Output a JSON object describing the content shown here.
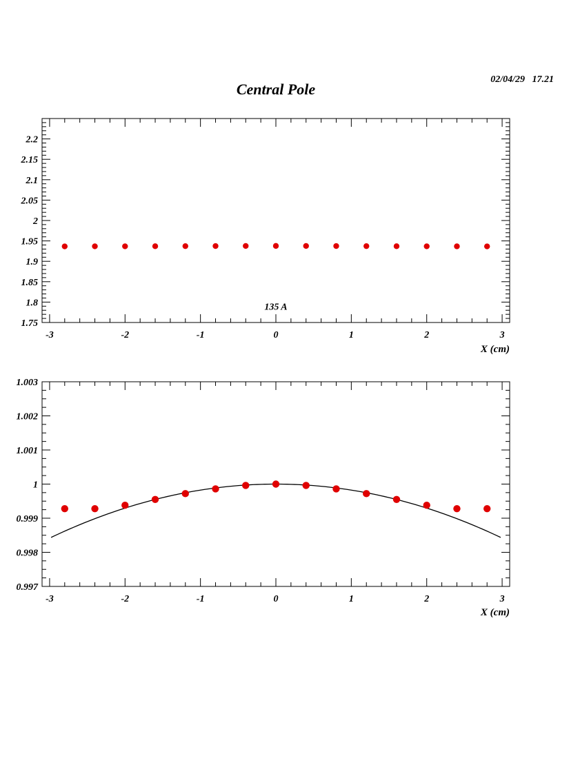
{
  "header": {
    "title": "Central Pole",
    "timestamp": "02/04/29   17.21"
  },
  "chart_data": [
    {
      "type": "scatter",
      "xlabel": "X (cm)",
      "ylabel": "",
      "xlim": [
        -3.1,
        3.1
      ],
      "ylim": [
        1.75,
        2.25
      ],
      "xticks": [
        -3,
        -2,
        -1,
        0,
        1,
        2,
        3
      ],
      "xtick_labels": [
        "-3",
        "-2",
        "-1",
        "0",
        "1",
        "2",
        "3"
      ],
      "yticks": [
        1.75,
        1.8,
        1.85,
        1.9,
        1.95,
        2,
        2.05,
        2.1,
        2.15,
        2.2
      ],
      "ytick_labels": [
        "1.75",
        "1.8",
        "1.85",
        "1.9",
        "1.95",
        "2",
        "2.05",
        "2.1",
        "2.15",
        "2.2"
      ],
      "annotation": "135 A",
      "annotation_at": [
        0,
        1.79
      ],
      "marker_color": "#e00000",
      "points": {
        "x": [
          -2.8,
          -2.4,
          -2.0,
          -1.6,
          -1.2,
          -0.8,
          -0.4,
          0.0,
          0.4,
          0.8,
          1.2,
          1.6,
          2.0,
          2.4,
          2.8
        ],
        "y": [
          1.9365,
          1.9368,
          1.9368,
          1.937,
          1.9372,
          1.9374,
          1.9376,
          1.9377,
          1.9376,
          1.9374,
          1.9372,
          1.937,
          1.9368,
          1.9367,
          1.9365
        ]
      }
    },
    {
      "type": "scatter",
      "xlabel": "X (cm)",
      "ylabel": "",
      "xlim": [
        -3.1,
        3.1
      ],
      "ylim": [
        0.997,
        1.003
      ],
      "xticks": [
        -3,
        -2,
        -1,
        0,
        1,
        2,
        3
      ],
      "xtick_labels": [
        "-3",
        "-2",
        "-1",
        "0",
        "1",
        "2",
        "3"
      ],
      "yticks": [
        0.997,
        0.998,
        0.999,
        1,
        1.001,
        1.002,
        1.003
      ],
      "ytick_labels": [
        "0.997",
        "0.998",
        "0.999",
        "1",
        "1.001",
        "1.002",
        "1.003"
      ],
      "marker_color": "#e00000",
      "points": {
        "x": [
          -2.8,
          -2.4,
          -2.0,
          -1.6,
          -1.2,
          -0.8,
          -0.4,
          0.0,
          0.4,
          0.8,
          1.2,
          1.6,
          2.0,
          2.4,
          2.8
        ],
        "y": [
          0.99928,
          0.99928,
          0.99938,
          0.99955,
          0.99972,
          0.99986,
          0.99996,
          1.0,
          0.99996,
          0.99986,
          0.99972,
          0.99955,
          0.99938,
          0.99928,
          0.99928
        ]
      },
      "fit_curve": {
        "type": "quadratic",
        "a": 1.0,
        "b": -0.000176,
        "x_range": [
          -2.98,
          2.98
        ],
        "color": "#000000"
      }
    }
  ]
}
